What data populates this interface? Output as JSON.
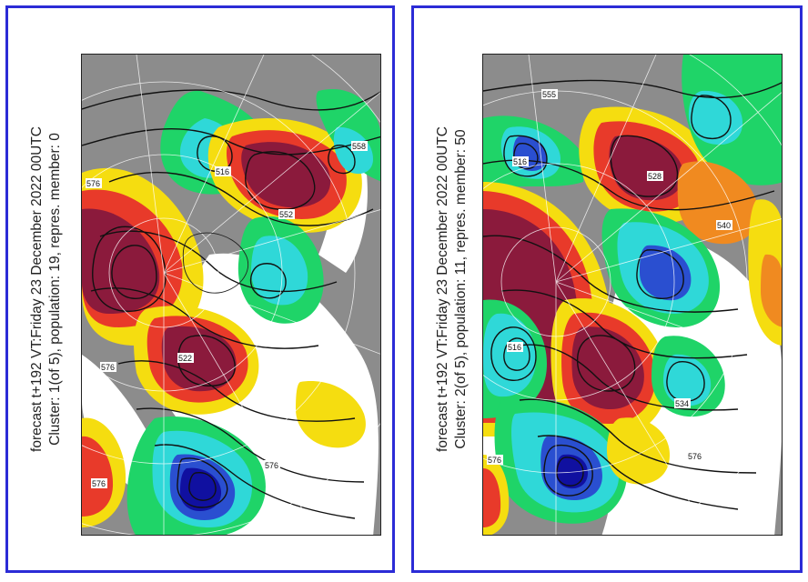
{
  "panels": [
    {
      "line1": "forecast t+192 VT:Friday 23 December 2022 00UTC",
      "line2": "Cluster: 1(of 5), population: 19, repres. member: 0",
      "contour_labels": [
        "576",
        "516",
        "552",
        "558",
        "576",
        "522",
        "576",
        "576"
      ]
    },
    {
      "line1": "forecast t+192 VT:Friday 23 December 2022 00UTC",
      "line2": "Cluster: 2(of 5), population: 11, repres. member: 50",
      "contour_labels": [
        "555",
        "516",
        "528",
        "516",
        "576",
        "534",
        "576",
        "540"
      ]
    }
  ],
  "colors": {
    "border": "#2b2bd6",
    "land": "#8c8c8c",
    "positive_strong": "#8b1a3c",
    "positive": "#e83a2a",
    "positive_mid": "#f08a20",
    "positive_weak": "#f5dd10",
    "negative_weak": "#1fd468",
    "negative": "#2fd8d8",
    "negative_strong": "#2a4fd0",
    "negative_core": "#1010a0"
  }
}
